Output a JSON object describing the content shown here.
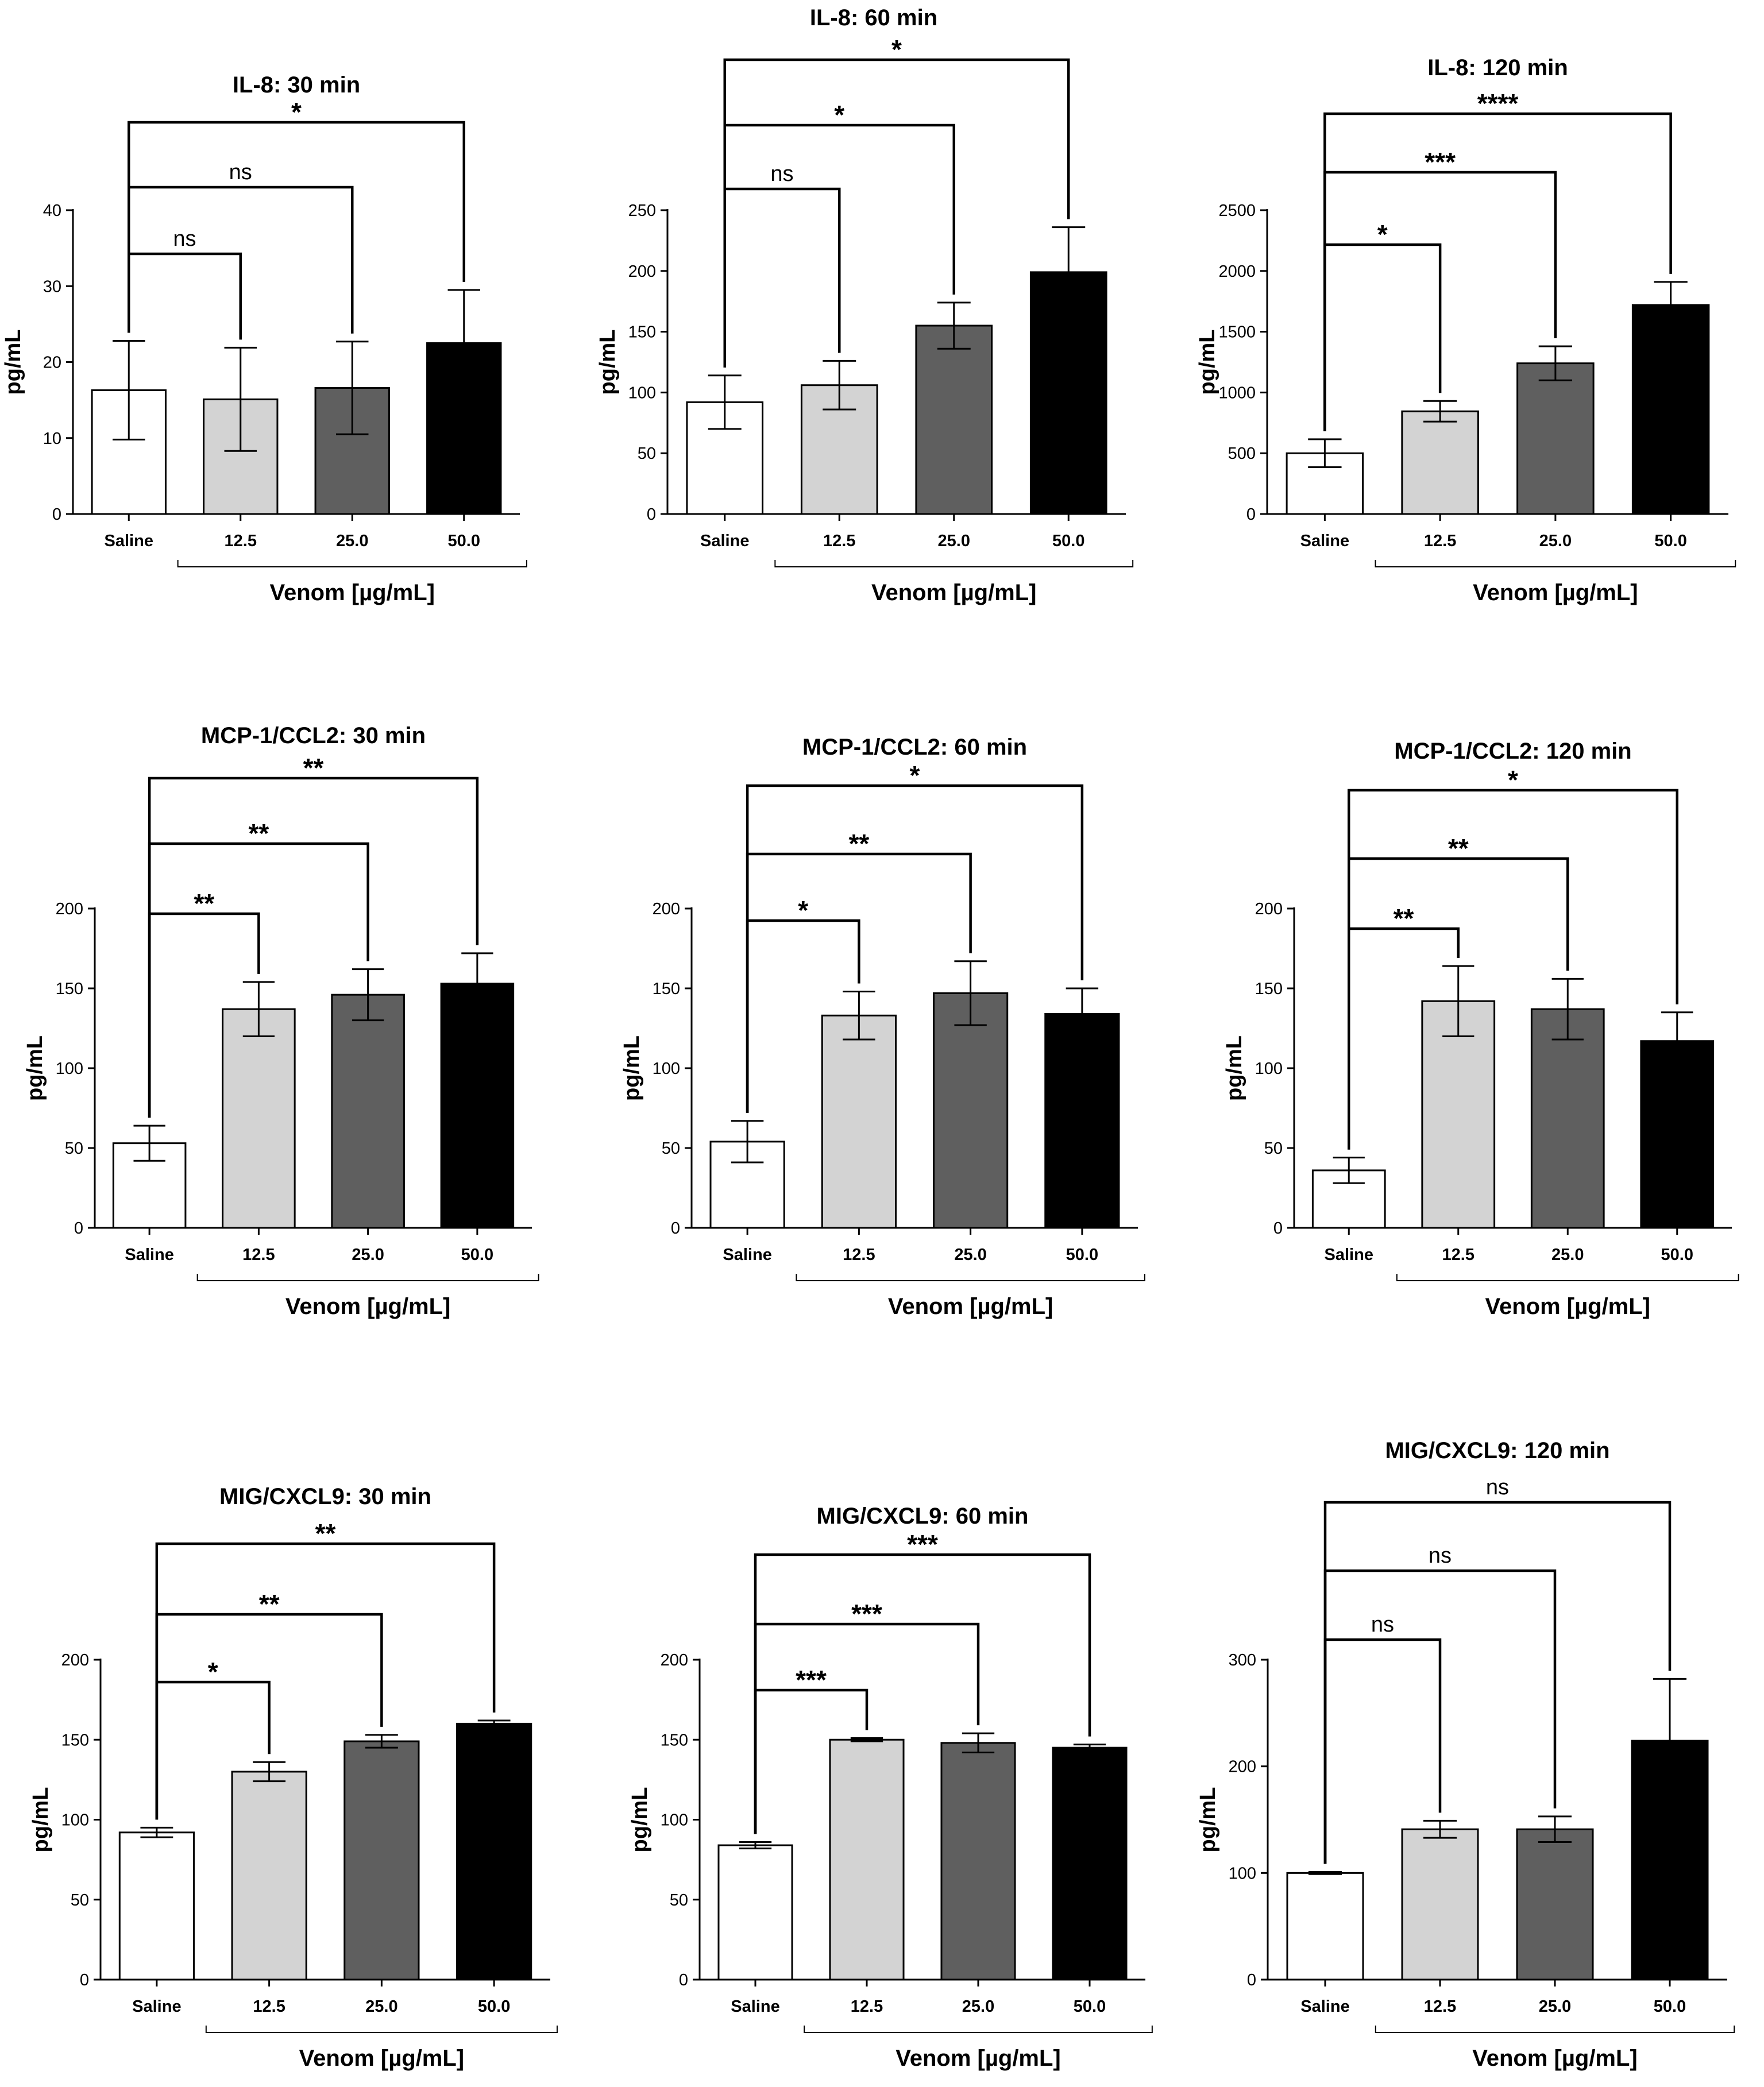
{
  "figure": {
    "x_group_label": "Venom [µg/mL]"
  },
  "chart_data": [
    {
      "type": "bar",
      "title": "IL-8: 30 min",
      "ylabel": "pg/mL",
      "xlabel": "Venom [µg/mL]",
      "categories": [
        "Saline",
        "12.5",
        "25.0",
        "50.0"
      ],
      "values": [
        16.3,
        15.1,
        16.6,
        22.5
      ],
      "errors": [
        6.5,
        6.8,
        6.1,
        7.0
      ],
      "ylim": [
        0,
        40
      ],
      "yticks": [
        0,
        10,
        20,
        30,
        40
      ],
      "colors": [
        "#ffffff",
        "#d3d3d3",
        "#5f5f5f",
        "#000000"
      ],
      "significance": [
        {
          "from": "Saline",
          "to": "12.5",
          "label": "ns"
        },
        {
          "from": "Saline",
          "to": "25.0",
          "label": "ns"
        },
        {
          "from": "Saline",
          "to": "50.0",
          "label": "*"
        }
      ]
    },
    {
      "type": "bar",
      "title": "IL-8: 60 min",
      "ylabel": "pg/mL",
      "xlabel": "Venom [µg/mL]",
      "categories": [
        "Saline",
        "12.5",
        "25.0",
        "50.0"
      ],
      "values": [
        92,
        106,
        155,
        199
      ],
      "errors": [
        22,
        20,
        19,
        37
      ],
      "ylim": [
        0,
        250
      ],
      "yticks": [
        0,
        50,
        100,
        150,
        200,
        250
      ],
      "colors": [
        "#ffffff",
        "#d3d3d3",
        "#5f5f5f",
        "#000000"
      ],
      "significance": [
        {
          "from": "Saline",
          "to": "12.5",
          "label": "ns"
        },
        {
          "from": "Saline",
          "to": "25.0",
          "label": "*"
        },
        {
          "from": "Saline",
          "to": "50.0",
          "label": "*"
        }
      ]
    },
    {
      "type": "bar",
      "title": "IL-8: 120 min",
      "ylabel": "pg/mL",
      "xlabel": "Venom [µg/mL]",
      "categories": [
        "Saline",
        "12.5",
        "25.0",
        "50.0"
      ],
      "values": [
        500,
        845,
        1240,
        1720
      ],
      "errors": [
        115,
        85,
        140,
        190
      ],
      "ylim": [
        0,
        2500
      ],
      "yticks": [
        0,
        500,
        1000,
        1500,
        2000,
        2500
      ],
      "colors": [
        "#ffffff",
        "#d3d3d3",
        "#5f5f5f",
        "#000000"
      ],
      "significance": [
        {
          "from": "Saline",
          "to": "12.5",
          "label": "*"
        },
        {
          "from": "Saline",
          "to": "25.0",
          "label": "***"
        },
        {
          "from": "Saline",
          "to": "50.0",
          "label": "****"
        }
      ]
    },
    {
      "type": "bar",
      "title": "MCP-1/CCL2: 30 min",
      "ylabel": "pg/mL",
      "xlabel": "Venom [µg/mL]",
      "categories": [
        "Saline",
        "12.5",
        "25.0",
        "50.0"
      ],
      "values": [
        53,
        137,
        146,
        153
      ],
      "errors": [
        11,
        17,
        16,
        19
      ],
      "ylim": [
        0,
        200
      ],
      "yticks": [
        0,
        50,
        100,
        150,
        200
      ],
      "colors": [
        "#ffffff",
        "#d3d3d3",
        "#5f5f5f",
        "#000000"
      ],
      "significance": [
        {
          "from": "Saline",
          "to": "12.5",
          "label": "**"
        },
        {
          "from": "Saline",
          "to": "25.0",
          "label": "**"
        },
        {
          "from": "Saline",
          "to": "50.0",
          "label": "**"
        }
      ]
    },
    {
      "type": "bar",
      "title": "MCP-1/CCL2: 60 min",
      "ylabel": "pg/mL",
      "xlabel": "Venom [µg/mL]",
      "categories": [
        "Saline",
        "12.5",
        "25.0",
        "50.0"
      ],
      "values": [
        54,
        133,
        147,
        134
      ],
      "errors": [
        13,
        15,
        20,
        16
      ],
      "ylim": [
        0,
        200
      ],
      "yticks": [
        0,
        50,
        100,
        150,
        200
      ],
      "colors": [
        "#ffffff",
        "#d3d3d3",
        "#5f5f5f",
        "#000000"
      ],
      "significance": [
        {
          "from": "Saline",
          "to": "12.5",
          "label": "*"
        },
        {
          "from": "Saline",
          "to": "25.0",
          "label": "**"
        },
        {
          "from": "Saline",
          "to": "50.0",
          "label": "*"
        }
      ]
    },
    {
      "type": "bar",
      "title": "MCP-1/CCL2: 120 min",
      "ylabel": "pg/mL",
      "xlabel": "Venom [µg/mL]",
      "categories": [
        "Saline",
        "12.5",
        "25.0",
        "50.0"
      ],
      "values": [
        36,
        142,
        137,
        117
      ],
      "errors": [
        8,
        22,
        19,
        18
      ],
      "ylim": [
        0,
        200
      ],
      "yticks": [
        0,
        50,
        100,
        150,
        200
      ],
      "colors": [
        "#ffffff",
        "#d3d3d3",
        "#5f5f5f",
        "#000000"
      ],
      "significance": [
        {
          "from": "Saline",
          "to": "12.5",
          "label": "**"
        },
        {
          "from": "Saline",
          "to": "25.0",
          "label": "**"
        },
        {
          "from": "Saline",
          "to": "50.0",
          "label": "*"
        }
      ]
    },
    {
      "type": "bar",
      "title": "MIG/CXCL9: 30 min",
      "ylabel": "pg/mL",
      "xlabel": "Venom [µg/mL]",
      "categories": [
        "Saline",
        "12.5",
        "25.0",
        "50.0"
      ],
      "values": [
        92,
        130,
        149,
        160
      ],
      "errors": [
        3,
        6,
        4,
        2
      ],
      "ylim": [
        0,
        200
      ],
      "yticks": [
        0,
        50,
        100,
        150,
        200
      ],
      "colors": [
        "#ffffff",
        "#d3d3d3",
        "#5f5f5f",
        "#000000"
      ],
      "significance": [
        {
          "from": "Saline",
          "to": "12.5",
          "label": "*"
        },
        {
          "from": "Saline",
          "to": "25.0",
          "label": "**"
        },
        {
          "from": "Saline",
          "to": "50.0",
          "label": "**"
        }
      ]
    },
    {
      "type": "bar",
      "title": "MIG/CXCL9: 60 min",
      "ylabel": "pg/mL",
      "xlabel": "Venom [µg/mL]",
      "categories": [
        "Saline",
        "12.5",
        "25.0",
        "50.0"
      ],
      "values": [
        84,
        150,
        148,
        145
      ],
      "errors": [
        2,
        1,
        6,
        2
      ],
      "ylim": [
        0,
        200
      ],
      "yticks": [
        0,
        50,
        100,
        150,
        200
      ],
      "colors": [
        "#ffffff",
        "#d3d3d3",
        "#5f5f5f",
        "#000000"
      ],
      "significance": [
        {
          "from": "Saline",
          "to": "12.5",
          "label": "***"
        },
        {
          "from": "Saline",
          "to": "25.0",
          "label": "***"
        },
        {
          "from": "Saline",
          "to": "50.0",
          "label": "***"
        }
      ]
    },
    {
      "type": "bar",
      "title": "MIG/CXCL9: 120 min",
      "ylabel": "pg/mL",
      "xlabel": "Venom [µg/mL]",
      "categories": [
        "Saline",
        "12.5",
        "25.0",
        "50.0"
      ],
      "values": [
        100,
        141,
        141,
        224
      ],
      "errors": [
        1,
        8,
        12,
        58
      ],
      "ylim": [
        0,
        300
      ],
      "yticks": [
        0,
        100,
        200,
        300
      ],
      "colors": [
        "#ffffff",
        "#d3d3d3",
        "#5f5f5f",
        "#000000"
      ],
      "significance": [
        {
          "from": "Saline",
          "to": "12.5",
          "label": "ns"
        },
        {
          "from": "Saline",
          "to": "25.0",
          "label": "ns"
        },
        {
          "from": "Saline",
          "to": "50.0",
          "label": "ns"
        }
      ]
    }
  ]
}
